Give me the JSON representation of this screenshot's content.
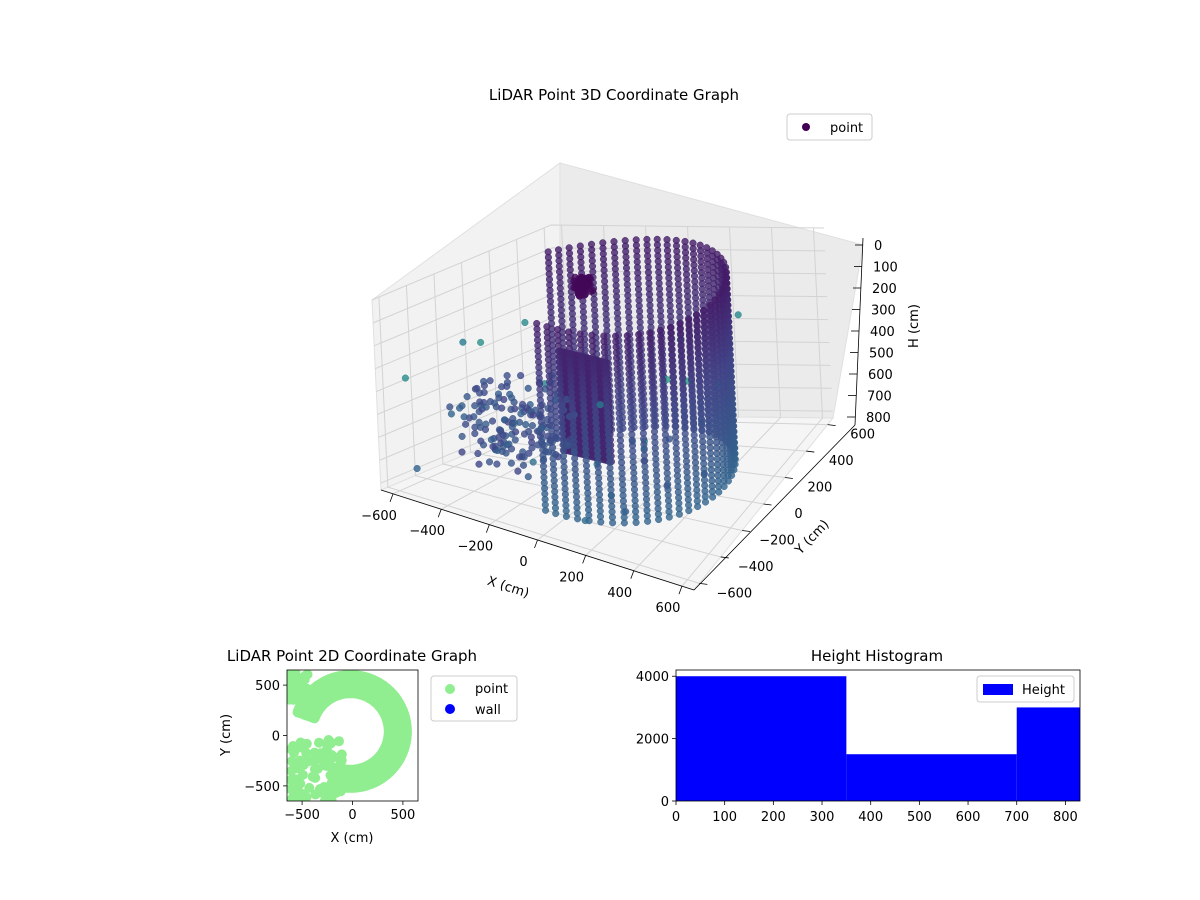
{
  "chart_data": [
    {
      "type": "scatter",
      "projection": "3d",
      "title": "LiDAR Point 3D Coordinate Graph",
      "xlabel": "X (cm)",
      "ylabel": "Y (cm)",
      "zlabel": "H (cm)",
      "xticks": [
        "−600",
        "−400",
        "−200",
        "0",
        "200",
        "400",
        "600"
      ],
      "yticks": [
        "−600",
        "−400",
        "−200",
        "0",
        "200",
        "400",
        "600"
      ],
      "zticks": [
        "0",
        "100",
        "200",
        "300",
        "400",
        "500",
        "600",
        "700",
        "800"
      ],
      "xlim": [
        -650,
        650
      ],
      "ylim": [
        -650,
        650
      ],
      "zlim": [
        0,
        830
      ],
      "z_inverted": true,
      "grid": true,
      "legend": {
        "placement": "top-right",
        "entries": [
          "point"
        ]
      },
      "series": [
        {
          "name": "point",
          "color": "#440154",
          "colormap": "viridis",
          "description_points": "arc-shaped wall of points from about (-300,100) sweeping around to (400,-300), heights 0–800"
        }
      ]
    },
    {
      "type": "scatter",
      "title": "LiDAR Point 2D Coordinate Graph",
      "xlabel": "X (cm)",
      "ylabel": "Y (cm)",
      "xticks": [
        "−500",
        "0",
        "500"
      ],
      "yticks": [
        "−500",
        "0",
        "500"
      ],
      "xlim": [
        -650,
        650
      ],
      "ylim": [
        -650,
        650
      ],
      "legend": {
        "placement": "outside-right",
        "entries": [
          "point",
          "wall"
        ]
      },
      "series": [
        {
          "name": "point",
          "color": "#90ee90"
        },
        {
          "name": "wall",
          "color": "#0000ff",
          "points": []
        }
      ]
    },
    {
      "type": "bar",
      "title": "Height Histogram",
      "xticks": [
        "0",
        "100",
        "200",
        "300",
        "400",
        "500",
        "600",
        "700",
        "800"
      ],
      "yticks": [
        "0",
        "2000",
        "4000"
      ],
      "xlim": [
        0,
        830
      ],
      "ylim": [
        0,
        4200
      ],
      "legend": {
        "placement": "top-right",
        "entries": [
          "Height"
        ]
      },
      "series": [
        {
          "name": "Height",
          "color": "#0000ff",
          "bins": [
            {
              "from": 0,
              "to": 350,
              "value": 4000
            },
            {
              "from": 350,
              "to": 700,
              "value": 1500
            },
            {
              "from": 700,
              "to": 830,
              "value": 3000
            }
          ]
        }
      ]
    }
  ]
}
